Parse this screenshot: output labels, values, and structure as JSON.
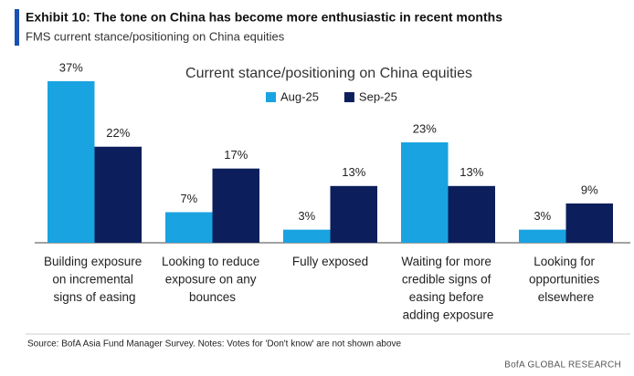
{
  "chart_data": {
    "type": "bar",
    "title": "Exhibit 10: The tone on China has become more enthusiastic in recent months",
    "subtitle": "FMS current stance/positioning on China equities",
    "chart_title": "Current stance/positioning on China equities",
    "categories": [
      "Building exposure on incremental signs of easing",
      "Looking to reduce exposure on any bounces",
      "Fully exposed",
      "Waiting for more credible signs of easing before adding exposure",
      "Looking for opportunities elsewhere"
    ],
    "series": [
      {
        "name": "Aug-25",
        "color": "#1aa3e1",
        "values": [
          37,
          7,
          3,
          23,
          3
        ],
        "value_labels": [
          "37%",
          "7%",
          "3%",
          "23%",
          "3%"
        ]
      },
      {
        "name": "Sep-25",
        "color": "#0c1f5c",
        "values": [
          22,
          17,
          13,
          13,
          9
        ],
        "value_labels": [
          "22%",
          "17%",
          "13%",
          "13%",
          "9%"
        ]
      }
    ],
    "legend": "top",
    "source": "Source: BofA Asia Fund Manager Survey. Notes: Votes for 'Don't know' are not shown above",
    "brand": "BofA GLOBAL RESEARCH"
  }
}
